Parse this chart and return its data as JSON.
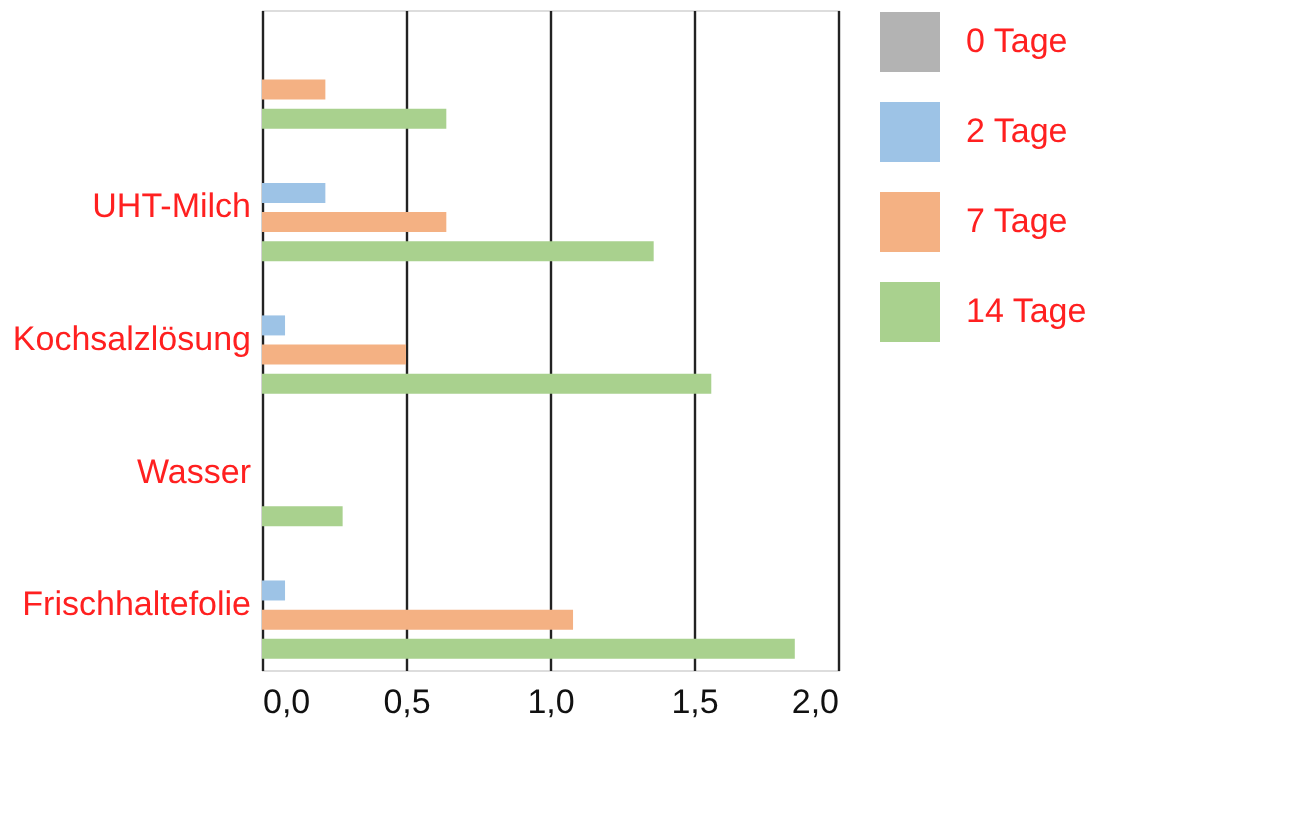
{
  "chart_data": {
    "type": "bar",
    "orientation": "horizontal",
    "categories": [
      null,
      "UHT-Milch",
      "Kochsalzlösung",
      "Wasser",
      "Frischhaltefolie"
    ],
    "series": [
      {
        "name": "0 Tage",
        "color": "#b3b3b3",
        "values": [
          0,
          0,
          0,
          0,
          0
        ]
      },
      {
        "name": "2 Tage",
        "color": "#9dc3e6",
        "values": [
          0,
          0.22,
          0.08,
          0,
          0.08
        ]
      },
      {
        "name": "7 Tage",
        "color": "#f4b183",
        "values": [
          0.22,
          0.64,
          0.5,
          0,
          1.08
        ]
      },
      {
        "name": "14 Tage",
        "color": "#a9d18e",
        "values": [
          0.64,
          1.36,
          1.56,
          0.28,
          1.85
        ]
      }
    ],
    "xlim": [
      0,
      2
    ],
    "xticks": [
      {
        "value": 0,
        "label": "0,0"
      },
      {
        "value": 0.5,
        "label": "0,5"
      },
      {
        "value": 1,
        "label": "1,0"
      },
      {
        "value": 1.5,
        "label": "1,5"
      },
      {
        "value": 2,
        "label": "2,0"
      }
    ],
    "grid": "x",
    "legend": "right"
  }
}
